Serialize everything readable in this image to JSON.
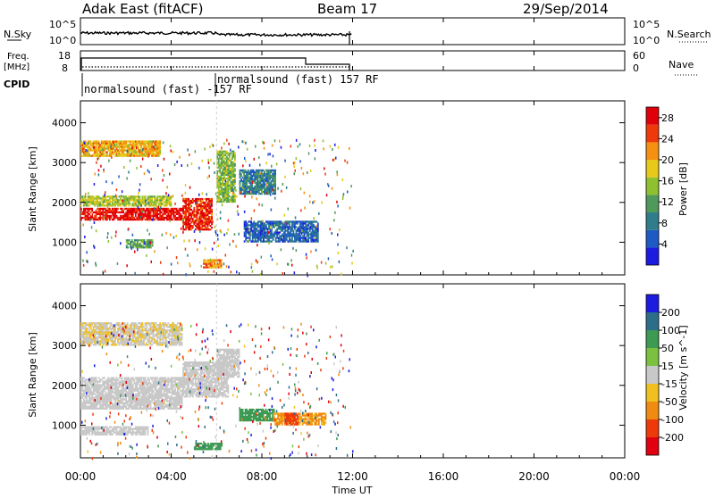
{
  "header": {
    "station": "Adak East (fitACF)",
    "beam": "Beam 17",
    "date": "29/Sep/2014"
  },
  "strip_panels": {
    "nsky": {
      "left_label": "N.Sky",
      "left_ticks": [
        "10^5",
        "10^0"
      ],
      "right_ticks": [
        "10^5",
        "10^0"
      ],
      "right_label": "N.Search"
    },
    "freq": {
      "left_label_top": "Freq.",
      "left_label_bottom": "[MHz]",
      "left_ticks": [
        "18",
        "8"
      ],
      "right_ticks": [
        "60",
        "0"
      ],
      "right_label": "Nave"
    },
    "cpid": {
      "label": "CPID",
      "program_1": "normalsound (fast) -157 RF",
      "program_2": "normalsound (fast) 157 RF"
    }
  },
  "chart_data": [
    {
      "type": "heatmap",
      "name": "power",
      "ylabel": "Slant Range [km]",
      "xlabel": "Time UT",
      "x_ticks": [
        "00:00",
        "04:00",
        "08:00",
        "12:00",
        "16:00",
        "20:00",
        "00:00"
      ],
      "xlim_hours": [
        0,
        24
      ],
      "ylim_km": [
        180,
        4550
      ],
      "y_ticks": [
        1000,
        2000,
        3000,
        4000
      ],
      "colorbar": {
        "label": "Power [dB]",
        "ticks": [
          4,
          8,
          12,
          16,
          20,
          24,
          28
        ],
        "range": [
          0,
          30
        ],
        "colors": [
          "#1c1ce0",
          "#1d5ac4",
          "#2f7d8a",
          "#4f9a5a",
          "#8fc030",
          "#e8c818",
          "#f59010",
          "#ee3a0a",
          "#e0000a"
        ]
      },
      "regions": [
        {
          "t0": 0.0,
          "t1": 4.5,
          "r0": 1550,
          "r1": 1850,
          "value": 28
        },
        {
          "t0": 4.5,
          "t1": 5.8,
          "r0": 1300,
          "r1": 2100,
          "value": 26
        },
        {
          "t0": 0.0,
          "t1": 4.0,
          "r0": 1900,
          "r1": 2150,
          "value": 16
        },
        {
          "t0": 0.0,
          "t1": 3.5,
          "r0": 3150,
          "r1": 3550,
          "value": 20
        },
        {
          "t0": 2.0,
          "t1": 3.2,
          "r0": 850,
          "r1": 1050,
          "value": 12
        },
        {
          "t0": 6.0,
          "t1": 6.8,
          "r0": 2000,
          "r1": 3300,
          "value": 14
        },
        {
          "t0": 7.0,
          "t1": 8.6,
          "r0": 2200,
          "r1": 2800,
          "value": 8
        },
        {
          "t0": 7.2,
          "t1": 10.5,
          "r0": 1000,
          "r1": 1500,
          "value": 6
        },
        {
          "t0": 5.4,
          "t1": 6.2,
          "r0": 350,
          "r1": 550,
          "value": 22
        }
      ]
    },
    {
      "type": "heatmap",
      "name": "velocity",
      "ylabel": "Slant Range [km]",
      "xlabel": "Time UT",
      "x_ticks": [
        "00:00",
        "04:00",
        "08:00",
        "12:00",
        "16:00",
        "20:00",
        "00:00"
      ],
      "xlim_hours": [
        0,
        24
      ],
      "ylim_km": [
        180,
        4550
      ],
      "y_ticks": [
        1000,
        2000,
        3000,
        4000
      ],
      "colorbar": {
        "label": "Velocity [m s^-1]",
        "ticks": [
          200,
          100,
          50,
          15,
          -15,
          -50,
          -100,
          -200
        ],
        "colors": [
          "#1c1ce0",
          "#2c6e8a",
          "#3c9a52",
          "#7cc040",
          "#c8c8c8",
          "#f0c020",
          "#f08a10",
          "#ee3a0a",
          "#e00010"
        ]
      },
      "regions": [
        {
          "t0": 0.0,
          "t1": 4.5,
          "r0": 1400,
          "r1": 2200,
          "value": 0
        },
        {
          "t0": 4.5,
          "t1": 6.5,
          "r0": 1700,
          "r1": 2600,
          "value": 0
        },
        {
          "t0": 6.0,
          "t1": 7.0,
          "r0": 2200,
          "r1": 2900,
          "value": 0
        },
        {
          "t0": 0.0,
          "t1": 4.5,
          "r0": 3000,
          "r1": 3550,
          "value": -10
        },
        {
          "t0": 7.0,
          "t1": 8.5,
          "r0": 1100,
          "r1": 1400,
          "value": 50
        },
        {
          "t0": 8.5,
          "t1": 10.8,
          "r0": 1000,
          "r1": 1300,
          "value": -40
        },
        {
          "t0": 9.0,
          "t1": 9.6,
          "r0": 1000,
          "r1": 1300,
          "value": -110
        },
        {
          "t0": 5.0,
          "t1": 6.2,
          "r0": 380,
          "r1": 520,
          "value": 60
        },
        {
          "t0": 0.0,
          "t1": 3.0,
          "r0": 750,
          "r1": 950,
          "value": 0
        }
      ]
    }
  ]
}
